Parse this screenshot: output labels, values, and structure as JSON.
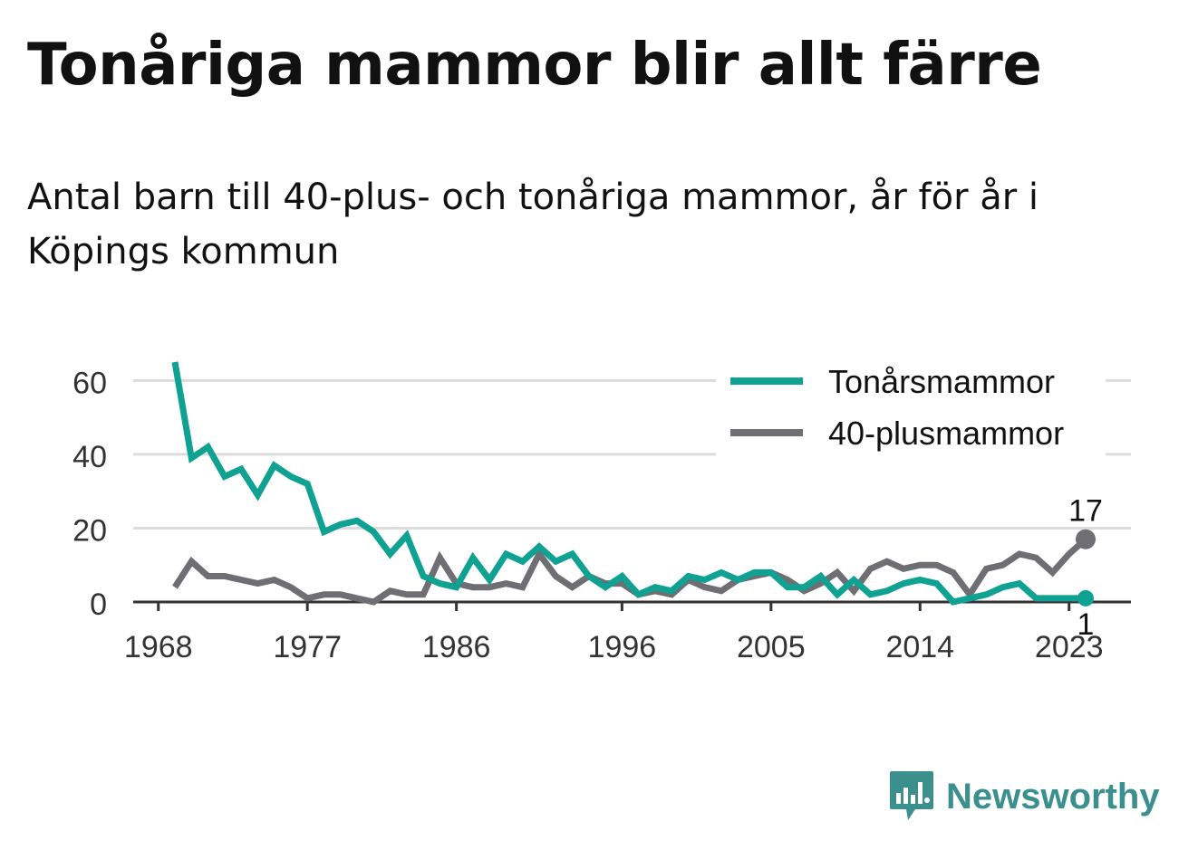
{
  "title": "Tonåriga mammor blir allt färre",
  "subtitle": "Antal barn till 40-plus- och tonåriga mammor, år för år i Köpings kommun",
  "brand": {
    "name": "Newsworthy",
    "color": "#3b8f8c",
    "icon": "bar-chart-speech-bubble-icon"
  },
  "chart_data": {
    "type": "line",
    "x": [
      1969,
      1970,
      1971,
      1972,
      1973,
      1974,
      1975,
      1976,
      1977,
      1978,
      1979,
      1980,
      1981,
      1982,
      1983,
      1984,
      1985,
      1986,
      1987,
      1988,
      1989,
      1990,
      1991,
      1992,
      1993,
      1994,
      1995,
      1996,
      1997,
      1998,
      1999,
      2000,
      2001,
      2002,
      2003,
      2004,
      2005,
      2006,
      2007,
      2008,
      2009,
      2010,
      2011,
      2012,
      2013,
      2014,
      2015,
      2016,
      2017,
      2018,
      2019,
      2020,
      2021,
      2022,
      2023,
      2024
    ],
    "series": [
      {
        "name": "Tonårsmammor",
        "color": "#0fa192",
        "values": [
          65,
          39,
          42,
          34,
          36,
          29,
          37,
          34,
          32,
          19,
          21,
          22,
          19,
          13,
          18,
          7,
          5,
          4,
          12,
          6,
          13,
          11,
          15,
          11,
          13,
          7,
          4,
          7,
          2,
          4,
          3,
          7,
          6,
          8,
          6,
          8,
          8,
          4,
          4,
          7,
          2,
          6,
          2,
          3,
          5,
          6,
          5,
          0,
          1,
          2,
          4,
          5,
          1,
          1,
          1,
          1
        ]
      },
      {
        "name": "40-plusmammor",
        "color": "#6e6e73",
        "values": [
          4,
          11,
          7,
          7,
          6,
          5,
          6,
          4,
          1,
          2,
          2,
          1,
          0,
          3,
          2,
          2,
          12,
          5,
          4,
          4,
          5,
          4,
          13,
          7,
          4,
          7,
          5,
          5,
          2,
          3,
          2,
          6,
          4,
          3,
          6,
          7,
          8,
          6,
          3,
          5,
          8,
          3,
          9,
          11,
          9,
          10,
          10,
          8,
          2,
          9,
          10,
          13,
          12,
          8,
          13,
          17
        ]
      }
    ],
    "x_ticks": [
      "1968",
      "1977",
      "1986",
      "1996",
      "2005",
      "2014",
      "2023"
    ],
    "y_ticks": [
      "0",
      "20",
      "40",
      "60"
    ],
    "ylim": [
      0,
      65
    ],
    "xlim": [
      1968,
      2025.5
    ],
    "grid": true,
    "legend_position": "top-right",
    "end_labels": [
      {
        "series": "40-plusmammor",
        "text": "17"
      },
      {
        "series": "Tonårsmammor",
        "text": "1"
      }
    ]
  }
}
